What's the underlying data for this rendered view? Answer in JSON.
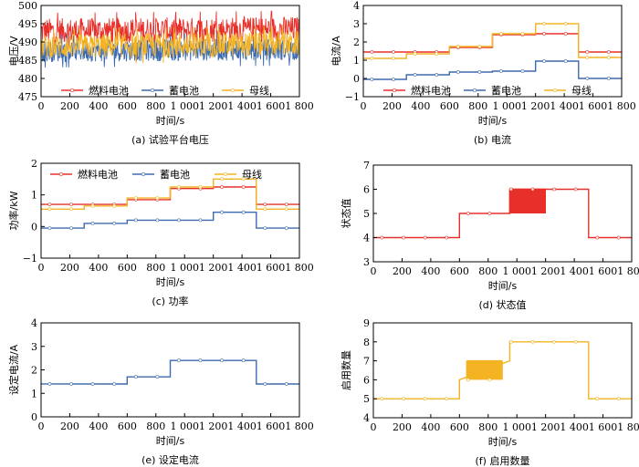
{
  "chart_data": [
    {
      "id": "a",
      "type": "line",
      "caption": "(a)  试验平台电压",
      "xlabel": "时间/s",
      "ylabel": "电压/V",
      "xlim": [
        0,
        1800
      ],
      "ylim": [
        475,
        500
      ],
      "xticks": [
        0,
        200,
        400,
        600,
        800,
        1000,
        1200,
        1400,
        1600,
        1800
      ],
      "xtick_labels": [
        "0",
        "200",
        "400",
        "600",
        "800",
        "1 000",
        "1 200",
        "1 400",
        "1 600",
        "1 800"
      ],
      "yticks": [
        475,
        480,
        485,
        490,
        495,
        500
      ],
      "ytick_labels": [
        "475",
        "480",
        "485",
        "490",
        "495",
        "500"
      ],
      "legend": {
        "position": "bottom",
        "entries": [
          "燃料电池",
          "蓄电池",
          "母线"
        ]
      },
      "series": [
        {
          "name": "燃料电池",
          "color": "#e8302a",
          "noise": true,
          "band": [
            [
              0,
              489.5,
              496.5
            ],
            [
              1800,
              490,
              497
            ]
          ]
        },
        {
          "name": "蓄电池",
          "color": "#3d6ab0",
          "noise": true,
          "band": [
            [
              0,
              484.5,
              490.5
            ],
            [
              1800,
              485,
              491
            ]
          ]
        },
        {
          "name": "母线",
          "color": "#f4b323",
          "noise": true,
          "band": [
            [
              0,
              485.5,
              492
            ],
            [
              1800,
              486,
              493
            ]
          ]
        }
      ]
    },
    {
      "id": "b",
      "type": "line",
      "caption": "(b)  电流",
      "xlabel": "时间/s",
      "ylabel": "电流/A",
      "xlim": [
        0,
        1800
      ],
      "ylim": [
        -1,
        4
      ],
      "xticks": [
        0,
        200,
        400,
        600,
        800,
        1000,
        1200,
        1400,
        1600,
        1800
      ],
      "xtick_labels": [
        "0",
        "200",
        "400",
        "600",
        "800",
        "1 000",
        "1 200",
        "1 400",
        "1 600",
        "1 800"
      ],
      "yticks": [
        -1,
        0,
        1,
        2,
        3,
        4
      ],
      "ytick_labels": [
        "−1",
        "0",
        "1",
        "2",
        "3",
        "4"
      ],
      "legend": {
        "position": "bottom",
        "entries": [
          "燃料电池",
          "蓄电池",
          "母线"
        ]
      },
      "series": [
        {
          "name": "燃料电池",
          "color": "#e8302a",
          "steps": [
            [
              0,
              1.45
            ],
            [
              300,
              1.45
            ],
            [
              600,
              1.7
            ],
            [
              900,
              2.4
            ],
            [
              1200,
              2.45
            ],
            [
              1500,
              1.45
            ],
            [
              1800,
              1.45
            ]
          ]
        },
        {
          "name": "蓄电池",
          "color": "#3d6ab0",
          "steps": [
            [
              0,
              -0.05
            ],
            [
              300,
              0.2
            ],
            [
              600,
              0.35
            ],
            [
              900,
              0.4
            ],
            [
              1200,
              0.95
            ],
            [
              1500,
              0.0
            ],
            [
              1800,
              0.0
            ]
          ]
        },
        {
          "name": "母线",
          "color": "#f4b323",
          "steps": [
            [
              0,
              1.1
            ],
            [
              300,
              1.35
            ],
            [
              600,
              1.75
            ],
            [
              900,
              2.45
            ],
            [
              1200,
              3.0
            ],
            [
              1500,
              1.15
            ],
            [
              1800,
              1.15
            ]
          ]
        }
      ]
    },
    {
      "id": "c",
      "type": "line",
      "caption": "(c)  功率",
      "xlabel": "时间/s",
      "ylabel": "功率/kW",
      "xlim": [
        0,
        1800
      ],
      "ylim": [
        -1,
        2
      ],
      "xticks": [
        0,
        200,
        400,
        600,
        800,
        1000,
        1200,
        1400,
        1600,
        1800
      ],
      "xtick_labels": [
        "0",
        "200",
        "400",
        "600",
        "800",
        "1 000",
        "1 200",
        "1 400",
        "1 600",
        "1 800"
      ],
      "yticks": [
        -1,
        0,
        1,
        2
      ],
      "ytick_labels": [
        "−1",
        "0",
        "1",
        "2"
      ],
      "legend": {
        "position": "top",
        "entries": [
          "燃料电池",
          "蓄电池",
          "母线"
        ]
      },
      "series": [
        {
          "name": "燃料电池",
          "color": "#e8302a",
          "steps": [
            [
              0,
              0.7
            ],
            [
              300,
              0.7
            ],
            [
              600,
              0.85
            ],
            [
              900,
              1.2
            ],
            [
              1200,
              1.25
            ],
            [
              1500,
              0.7
            ],
            [
              1800,
              0.7
            ]
          ]
        },
        {
          "name": "蓄电池",
          "color": "#3d6ab0",
          "steps": [
            [
              0,
              -0.05
            ],
            [
              300,
              0.1
            ],
            [
              600,
              0.2
            ],
            [
              900,
              0.2
            ],
            [
              1200,
              0.45
            ],
            [
              1500,
              -0.05
            ],
            [
              1800,
              -0.05
            ]
          ]
        },
        {
          "name": "母线",
          "color": "#f4b323",
          "steps": [
            [
              0,
              0.55
            ],
            [
              300,
              0.65
            ],
            [
              600,
              0.9
            ],
            [
              900,
              1.25
            ],
            [
              1200,
              1.5
            ],
            [
              1500,
              0.55
            ],
            [
              1800,
              0.55
            ]
          ]
        }
      ]
    },
    {
      "id": "d",
      "type": "line",
      "caption": "(d)  状态值",
      "xlabel": "时间/s",
      "ylabel": "状态值",
      "xlim": [
        0,
        1800
      ],
      "ylim": [
        3,
        7
      ],
      "xticks": [
        0,
        200,
        400,
        600,
        800,
        1000,
        1200,
        1400,
        1600,
        1800
      ],
      "xtick_labels": [
        "0",
        "200",
        "400",
        "600",
        "800",
        "1 000",
        "1 200",
        "1 400",
        "1 600",
        "1 800"
      ],
      "yticks": [
        3,
        4,
        5,
        6,
        7
      ],
      "ytick_labels": [
        "3",
        "4",
        "5",
        "6",
        "7"
      ],
      "series": [
        {
          "color": "#e8302a",
          "steps": [
            [
              0,
              4
            ],
            [
              600,
              5
            ],
            [
              950,
              6
            ],
            [
              1500,
              4
            ],
            [
              1800,
              4
            ]
          ],
          "oscillation": [
            950,
            1200,
            5,
            6
          ]
        }
      ]
    },
    {
      "id": "e",
      "type": "line",
      "caption": "(e)  设定电流",
      "xlabel": "时间/s",
      "ylabel": "设定电流/A",
      "xlim": [
        0,
        1800
      ],
      "ylim": [
        0,
        4
      ],
      "xticks": [
        0,
        200,
        400,
        600,
        800,
        1000,
        1200,
        1400,
        1600,
        1800
      ],
      "xtick_labels": [
        "0",
        "200",
        "400",
        "600",
        "800",
        "1 000",
        "1 200",
        "1 400",
        "1 600",
        "1 800"
      ],
      "yticks": [
        0,
        1,
        2,
        3,
        4
      ],
      "ytick_labels": [
        "0",
        "1",
        "2",
        "3",
        "4"
      ],
      "series": [
        {
          "color": "#3d6ab0",
          "steps": [
            [
              0,
              1.4
            ],
            [
              600,
              1.7
            ],
            [
              900,
              2.4
            ],
            [
              1500,
              1.4
            ],
            [
              1800,
              1.4
            ]
          ]
        }
      ]
    },
    {
      "id": "f",
      "type": "line",
      "caption": "(f)  启用数量",
      "xlabel": "时间/s",
      "ylabel": "启用数量",
      "xlim": [
        0,
        1800
      ],
      "ylim": [
        4,
        9
      ],
      "xticks": [
        0,
        200,
        400,
        600,
        800,
        1000,
        1200,
        1400,
        1600,
        1800
      ],
      "xtick_labels": [
        "0",
        "200",
        "400",
        "600",
        "800",
        "1 000",
        "1 200",
        "1 400",
        "1 600",
        "1 800"
      ],
      "yticks": [
        4,
        5,
        6,
        7,
        8,
        9
      ],
      "ytick_labels": [
        "4",
        "5",
        "6",
        "7",
        "8",
        "9"
      ],
      "series": [
        {
          "color": "#f4b323",
          "steps": [
            [
              0,
              5
            ],
            [
              600,
              6
            ],
            [
              900,
              7
            ],
            [
              950,
              8
            ],
            [
              1500,
              5
            ],
            [
              1800,
              5
            ]
          ],
          "oscillation": [
            650,
            900,
            6,
            7
          ]
        }
      ]
    }
  ]
}
